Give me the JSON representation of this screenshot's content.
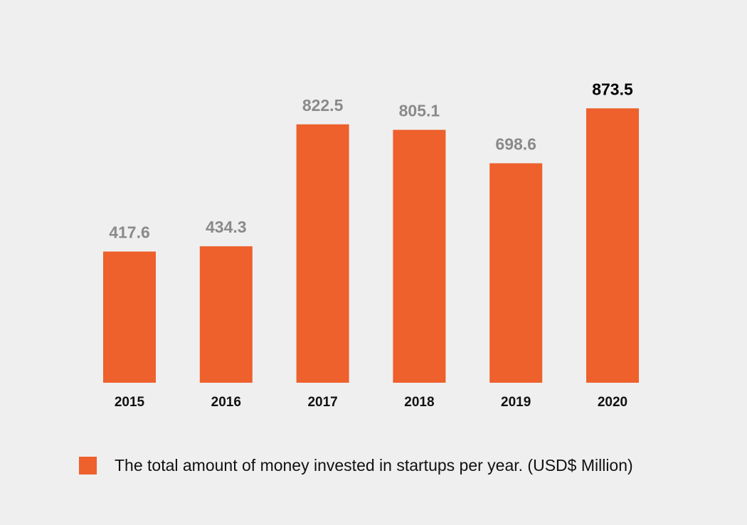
{
  "chart_data": {
    "type": "bar",
    "title": "",
    "xlabel": "",
    "ylabel": "",
    "categories": [
      "2015",
      "2016",
      "2017",
      "2018",
      "2019",
      "2020"
    ],
    "values": [
      417.6,
      434.3,
      822.5,
      805.1,
      698.6,
      873.5
    ],
    "value_labels": [
      "417.6",
      "434.3",
      "822.5",
      "805.1",
      "698.6",
      "873.5"
    ],
    "highlighted_index": 5,
    "ylim": [
      0,
      900
    ],
    "grid": false,
    "legend": {
      "position": "bottom-left",
      "entries": [
        {
          "label": "The total amount of money invested in startups per year. (USD$ Million)"
        }
      ]
    }
  },
  "colors": {
    "bar": "#ee602c",
    "label_default": "#8a8a8a",
    "label_highlight": "#000000",
    "background": "#efefef"
  }
}
